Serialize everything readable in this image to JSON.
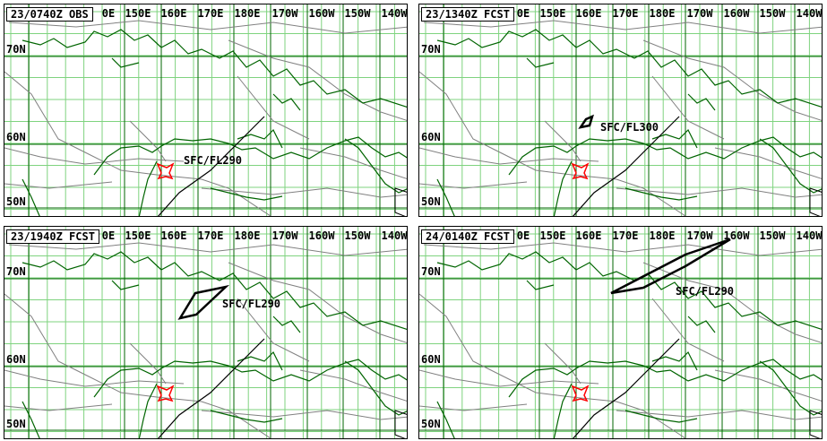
{
  "panels": [
    {
      "time_label": "23/0740Z OBS",
      "area_label": "SFC/FL290"
    },
    {
      "time_label": "23/1340Z FCST",
      "area_label": "SFC/FL300"
    },
    {
      "time_label": "23/1940Z FCST",
      "area_label": "SFC/FL290"
    },
    {
      "time_label": "24/0140Z FCST",
      "area_label": "SFC/FL290"
    }
  ],
  "longitude_labels": [
    "0E",
    "150E",
    "160E",
    "170E",
    "180E",
    "170W",
    "160W",
    "150W",
    "140W"
  ],
  "latitude_labels": [
    "70N",
    "60N",
    "50N"
  ],
  "colors": {
    "grid_major": "#006400",
    "grid_minor": "#7fd37f",
    "coastline": "#006400",
    "boundaries": "#808080",
    "volcano": "#ff0000",
    "outline": "#000000"
  }
}
